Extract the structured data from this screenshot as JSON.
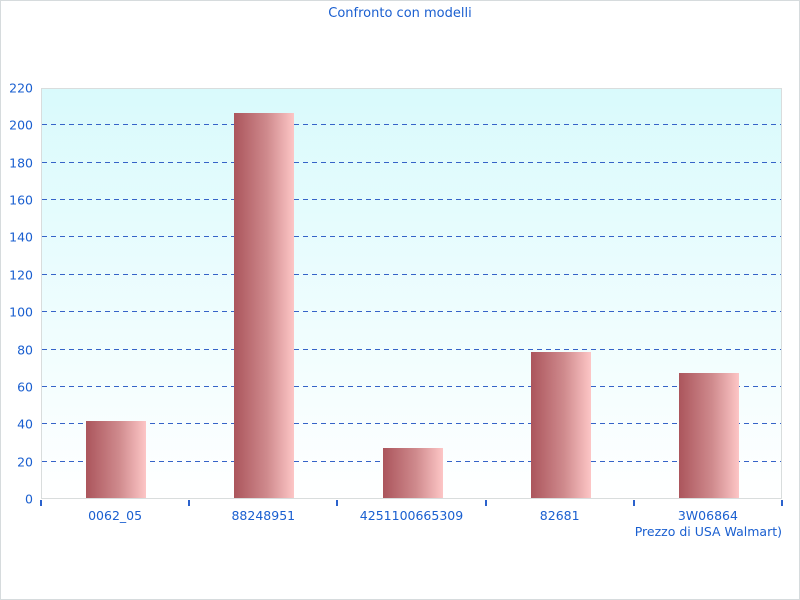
{
  "page": {
    "title": "Confronto con modelli"
  },
  "colors": {
    "text_blue": "#1a5fd0",
    "gridline_blue": "#3563c8",
    "tick_blue": "#2b62cc",
    "plot_bg_top": "#d9fafc",
    "plot_bg_bottom": "#ffffff",
    "plot_border_gray": "#d9dddd",
    "bar_gradient_left": "#ab555c",
    "bar_gradient_right": "#fdc6c6"
  },
  "chart_data": {
    "type": "bar",
    "title": "Confronto con modelli",
    "categories": [
      "0062_05",
      "88248951",
      "4251100665309",
      "82681",
      "3W06864"
    ],
    "values": [
      41,
      206,
      27,
      78,
      67
    ],
    "series_name": "Prezzo",
    "xlabel": "Prezzo di USA Walmart)",
    "ylabel": "",
    "ylim": [
      0,
      220
    ],
    "ytick_step": 20,
    "yticks": [
      0,
      20,
      40,
      60,
      80,
      100,
      120,
      140,
      160,
      180,
      200,
      220
    ],
    "grid": "horizontal-dashed-blue",
    "legend_position": "none",
    "bar_style": "horizontal-gradient dark-rose to light-pink",
    "plot_background": "vertical gradient light-cyan to white"
  }
}
